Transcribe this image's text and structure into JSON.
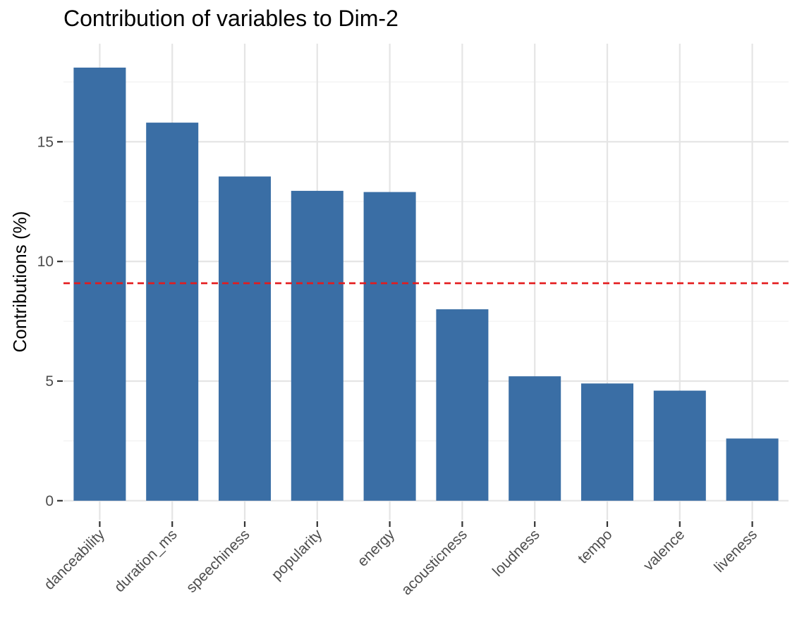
{
  "chart_data": {
    "type": "bar",
    "title": "Contribution of variables to Dim-2",
    "xlabel": "",
    "ylabel": "Contributions (%)",
    "categories": [
      "danceability",
      "duration_ms",
      "speechiness",
      "popularity",
      "energy",
      "acousticness",
      "loudness",
      "tempo",
      "valence",
      "liveness"
    ],
    "values": [
      18.1,
      15.8,
      13.55,
      12.95,
      12.9,
      8.0,
      5.2,
      4.9,
      4.6,
      2.6
    ],
    "ylim": [
      -0.8,
      19.1
    ],
    "yticks": [
      0,
      5,
      10,
      15
    ],
    "reference_line": {
      "value": 9.09,
      "style": "dashed"
    },
    "grid": true,
    "colors": {
      "bar": "#3A6EA5",
      "reference_line": "#E41A1C",
      "grid_major": "#E5E5E5",
      "grid_minor": "#F1F1F1",
      "text": "#4D4D4D"
    }
  }
}
